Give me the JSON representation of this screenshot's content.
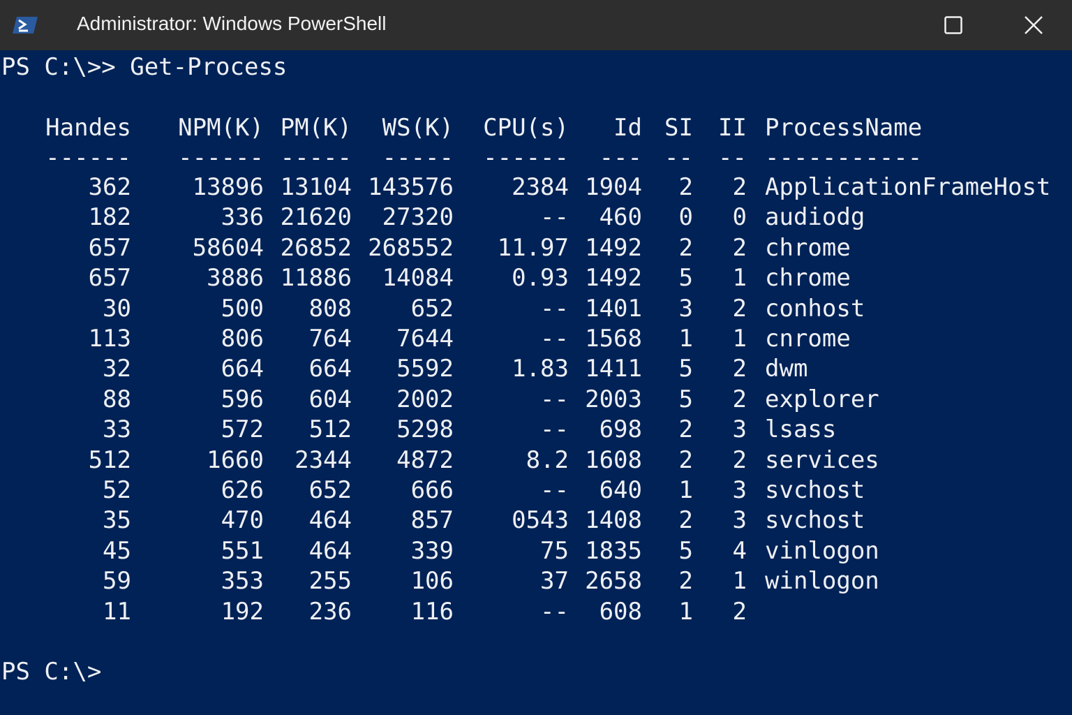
{
  "window": {
    "title": "Administrator: Windows PowerShell",
    "icon": "powershell-icon",
    "buttons": [
      "maximize-icon",
      "close-icon"
    ]
  },
  "terminal": {
    "command_line": "PS C:\\>> Get-Process",
    "headers": [
      "Handes",
      "NPM(K)",
      "PM(K)",
      "WS(K)",
      "CPU(s)",
      "Id",
      "SI",
      "II",
      "ProcessName"
    ],
    "dashes": [
      "------",
      "------",
      "-----",
      "-----",
      "------",
      "---",
      "--",
      "--",
      "-----------"
    ],
    "rows": [
      [
        "362",
        "13896",
        "13104",
        "143576",
        "2384",
        "1904",
        "2",
        "2",
        "ApplicationFrameHost"
      ],
      [
        "182",
        "336",
        "21620",
        "27320",
        "--",
        "460",
        "0",
        "0",
        "audiodg"
      ],
      [
        "657",
        "58604",
        "26852",
        "268552",
        "11.97",
        "1492",
        "2",
        "2",
        "chrome"
      ],
      [
        "657",
        "3886",
        "11886",
        "14084",
        "0.93",
        "1492",
        "5",
        "1",
        "chrome"
      ],
      [
        "30",
        "500",
        "808",
        "652",
        "--",
        "1401",
        "3",
        "2",
        "conhost"
      ],
      [
        "113",
        "806",
        "764",
        "7644",
        "--",
        "1568",
        "1",
        "1",
        "cnrome"
      ],
      [
        "32",
        "664",
        "664",
        "5592",
        "1.83",
        "1411",
        "5",
        "2",
        "dwm"
      ],
      [
        "88",
        "596",
        "604",
        "2002",
        "--",
        "2003",
        "5",
        "2",
        "explorer"
      ],
      [
        "33",
        "572",
        "512",
        "5298",
        "--",
        "698",
        "2",
        "3",
        "lsass"
      ],
      [
        "512",
        "1660",
        "2344",
        "4872",
        "8.2",
        "1608",
        "2",
        "2",
        "services"
      ],
      [
        "52",
        "626",
        "652",
        "666",
        "--",
        "640",
        "1",
        "3",
        "svchost"
      ],
      [
        "35",
        "470",
        "464",
        "857",
        "0543",
        "1408",
        "2",
        "3",
        "svchost"
      ],
      [
        "45",
        "551",
        "464",
        "339",
        "75",
        "1835",
        "5",
        "4",
        "vinlogon"
      ],
      [
        "59",
        "353",
        "255",
        "106",
        "37",
        "2658",
        "2",
        "1",
        "winlogon"
      ],
      [
        "11",
        "192",
        "236",
        "116",
        "--",
        "608",
        "1",
        "2",
        ""
      ]
    ],
    "prompt": "PS C:\\>"
  }
}
